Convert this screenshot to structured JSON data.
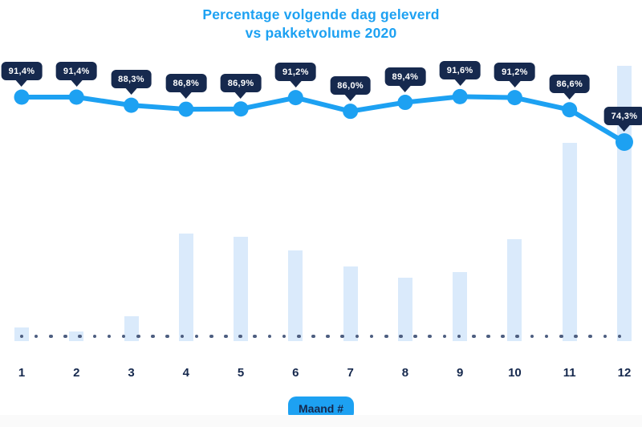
{
  "header": {
    "title_line1": "Percentage volgende dag geleverd",
    "title_line2": "vs pakketvolume 2020"
  },
  "chart_data": {
    "type": "combo (line + bar)",
    "title": "Percentage volgende dag geleverd vs pakketvolume 2020",
    "categories": [
      "1",
      "2",
      "3",
      "4",
      "5",
      "6",
      "7",
      "8",
      "9",
      "10",
      "11",
      "12"
    ],
    "series": [
      {
        "name": "Percentage volgende dag geleverd",
        "type": "line",
        "unit": "%",
        "values": [
          91.4,
          91.4,
          88.3,
          86.8,
          86.9,
          91.2,
          86.0,
          89.4,
          91.6,
          91.2,
          86.6,
          74.3
        ],
        "labels": [
          "91,4%",
          "91,4%",
          "88,3%",
          "86,8%",
          "86,9%",
          "91,2%",
          "86,0%",
          "89,4%",
          "91,6%",
          "91,2%",
          "86,6%",
          "74,3%"
        ]
      },
      {
        "name": "Pakketvolume 2020",
        "type": "bar",
        "unit": "relative index (unlabeled axis, estimated, max = 100)",
        "values": [
          5,
          3.5,
          9,
          39,
          38,
          33,
          27,
          23,
          25,
          37,
          72,
          100
        ]
      }
    ],
    "xlabel": "Maand #",
    "ylabel": "",
    "legend_position": "none",
    "grid": false,
    "baseline_style": "dotted horizontal reference line near x-axis"
  },
  "colors": {
    "accent_blue": "#1da1f2",
    "navy": "#16294e",
    "bar_fill": "#daeafb",
    "baseline_dot": "#4d5e80",
    "badge_text": "#ffffff",
    "footer_strip": "#fafafa"
  }
}
